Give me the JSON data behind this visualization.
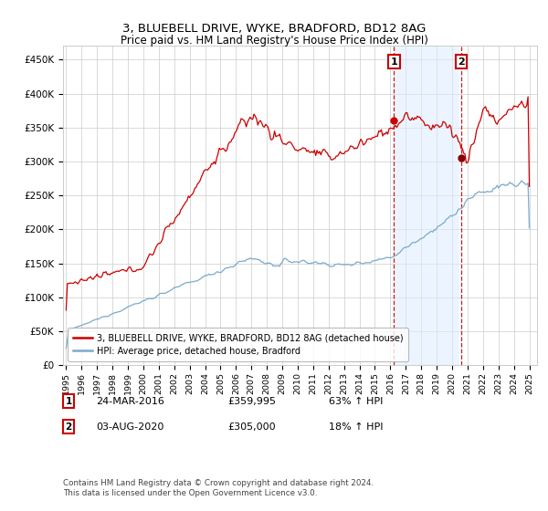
{
  "title": "3, BLUEBELL DRIVE, WYKE, BRADFORD, BD12 8AG",
  "subtitle": "Price paid vs. HM Land Registry's House Price Index (HPI)",
  "ylabel_ticks": [
    "£0",
    "£50K",
    "£100K",
    "£150K",
    "£200K",
    "£250K",
    "£300K",
    "£350K",
    "£400K",
    "£450K"
  ],
  "ytick_vals": [
    0,
    50000,
    100000,
    150000,
    200000,
    250000,
    300000,
    350000,
    400000,
    450000
  ],
  "ylim": [
    0,
    470000
  ],
  "xlim_start": 1994.8,
  "xlim_end": 2025.5,
  "sale1_date": 2016.23,
  "sale1_price": 359995,
  "sale2_date": 2020.58,
  "sale2_price": 305000,
  "sale1_label": "1",
  "sale2_label": "2",
  "legend_line1": "3, BLUEBELL DRIVE, WYKE, BRADFORD, BD12 8AG (detached house)",
  "legend_line2": "HPI: Average price, detached house, Bradford",
  "footer": "Contains HM Land Registry data © Crown copyright and database right 2024.\nThis data is licensed under the Open Government Licence v3.0.",
  "line_red": "#cc0000",
  "line_blue": "#7aaacc",
  "shade_color": "#ddeeff",
  "box_color": "#cc0000",
  "xtick_years": [
    1995,
    1996,
    1997,
    1998,
    1999,
    2000,
    2001,
    2002,
    2003,
    2004,
    2005,
    2006,
    2007,
    2008,
    2009,
    2010,
    2011,
    2012,
    2013,
    2014,
    2015,
    2016,
    2017,
    2018,
    2019,
    2020,
    2021,
    2022,
    2023,
    2024,
    2025
  ]
}
